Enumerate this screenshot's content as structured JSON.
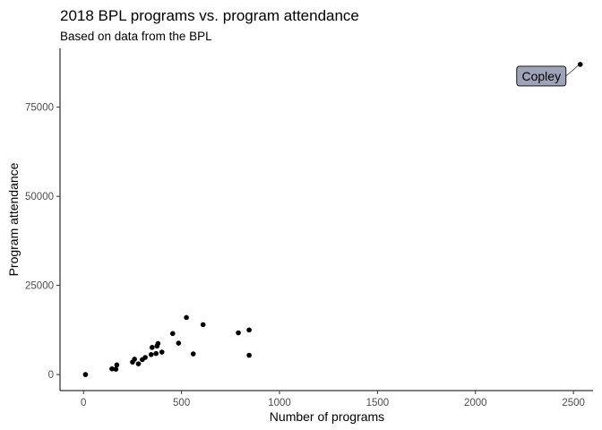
{
  "chart_data": {
    "type": "scatter",
    "title": "2018 BPL programs vs. program attendance",
    "subtitle": "Based on data from the BPL",
    "xlabel": "Number of programs",
    "ylabel": "Program attendance",
    "xlim": [
      -120,
      2600
    ],
    "ylim": [
      -4500,
      91500
    ],
    "x_ticks": [
      0,
      500,
      1000,
      1500,
      2000,
      2500
    ],
    "y_ticks": [
      0,
      25000,
      50000,
      75000
    ],
    "grid": false,
    "legend": "none",
    "points": [
      {
        "x": 10,
        "y": 0
      },
      {
        "x": 145,
        "y": 1600
      },
      {
        "x": 165,
        "y": 1500
      },
      {
        "x": 170,
        "y": 2700
      },
      {
        "x": 250,
        "y": 3500
      },
      {
        "x": 260,
        "y": 4300
      },
      {
        "x": 280,
        "y": 3000
      },
      {
        "x": 300,
        "y": 4200
      },
      {
        "x": 315,
        "y": 4800
      },
      {
        "x": 345,
        "y": 5600
      },
      {
        "x": 350,
        "y": 7600
      },
      {
        "x": 370,
        "y": 5900
      },
      {
        "x": 375,
        "y": 8000
      },
      {
        "x": 380,
        "y": 8700
      },
      {
        "x": 400,
        "y": 6300
      },
      {
        "x": 455,
        "y": 11500
      },
      {
        "x": 485,
        "y": 8800
      },
      {
        "x": 525,
        "y": 16000
      },
      {
        "x": 560,
        "y": 5800
      },
      {
        "x": 610,
        "y": 14000
      },
      {
        "x": 790,
        "y": 11700
      },
      {
        "x": 845,
        "y": 12500
      },
      {
        "x": 845,
        "y": 5400
      },
      {
        "x": 2535,
        "y": 87000
      }
    ],
    "annotations": [
      {
        "text": "Copley",
        "x": 2535,
        "y": 87000
      }
    ]
  }
}
